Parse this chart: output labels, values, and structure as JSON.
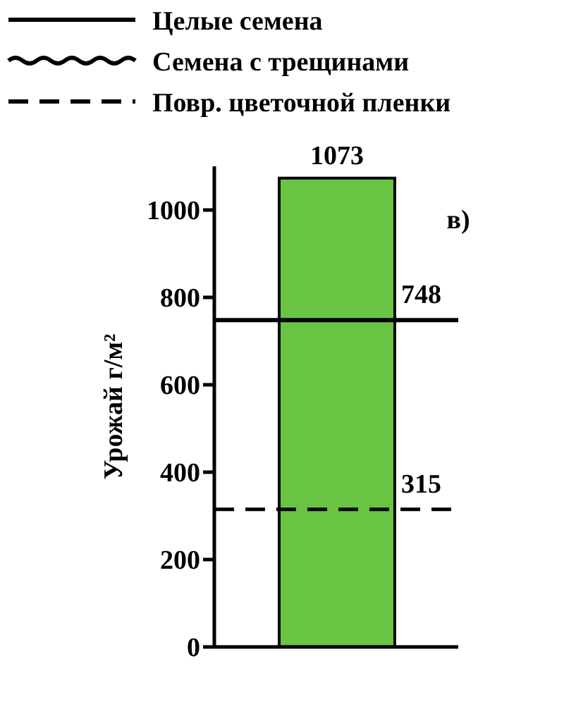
{
  "chart_data": {
    "type": "bar",
    "categories": [
      null
    ],
    "values": [
      1073
    ],
    "color": "#6ac443",
    "data_labels": true,
    "ylabel": "Урожай г/м²",
    "ylim": [
      0,
      1100
    ],
    "yticks": [
      0,
      200,
      400,
      600,
      800,
      1000
    ],
    "grid": false,
    "ref_lines": [
      {
        "axis": "y",
        "value": 748,
        "label": "748",
        "line_style": "solid"
      },
      {
        "axis": "y",
        "value": 315,
        "label": "315",
        "line_style": "dashed"
      }
    ],
    "annotations": [
      "Целые семена",
      "Семена с трещинами",
      "Повр. цветочной пленки",
      "в)"
    ]
  }
}
